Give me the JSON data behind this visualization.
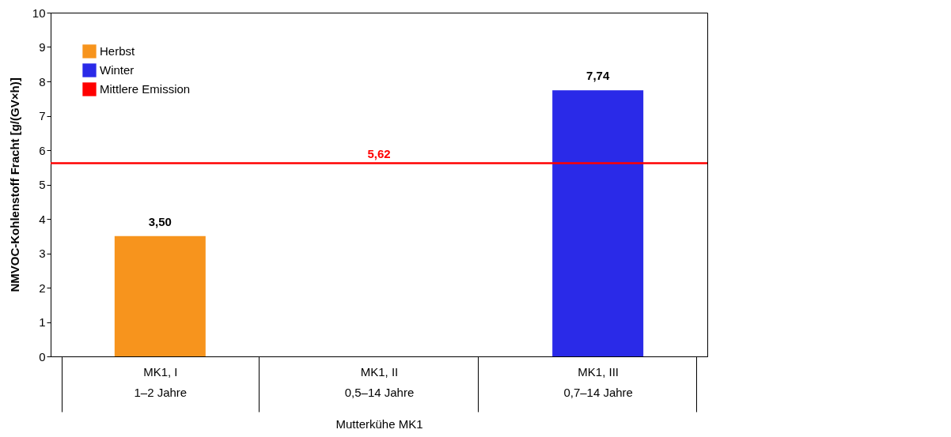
{
  "chart_data": {
    "type": "bar",
    "ylabel": "NMVOC-Kohlenstoff Fracht [g/(GV×h)]",
    "xlabel": "Mutterkühe MK1",
    "categories": [
      "MK1, I\n1–2 Jahre",
      "MK1, II\n0,5–14 Jahre",
      "MK1, III\n0,7–14 Jahre"
    ],
    "series": [
      {
        "name": "Herbst",
        "color": "#f7941d",
        "values": [
          3.5,
          null,
          null
        ],
        "value_labels": [
          "3,50",
          null,
          null
        ]
      },
      {
        "name": "Winter",
        "color": "#2a2ae8",
        "values": [
          null,
          null,
          7.74
        ],
        "value_labels": [
          null,
          null,
          "7,74"
        ]
      }
    ],
    "ref_lines": [
      {
        "axis": "y",
        "value": 5.62,
        "label": "Mittlere Emission",
        "color": "#ff0000"
      }
    ],
    "annotations": [
      {
        "text": "5,62",
        "x": "MK1, II\n0,5–14 Jahre",
        "y": 5.62
      }
    ],
    "ylim": [
      0,
      10
    ],
    "yticks": [
      0,
      1,
      2,
      3,
      4,
      5,
      6,
      7,
      8,
      9,
      10
    ],
    "grid": false,
    "legend": "top left"
  }
}
